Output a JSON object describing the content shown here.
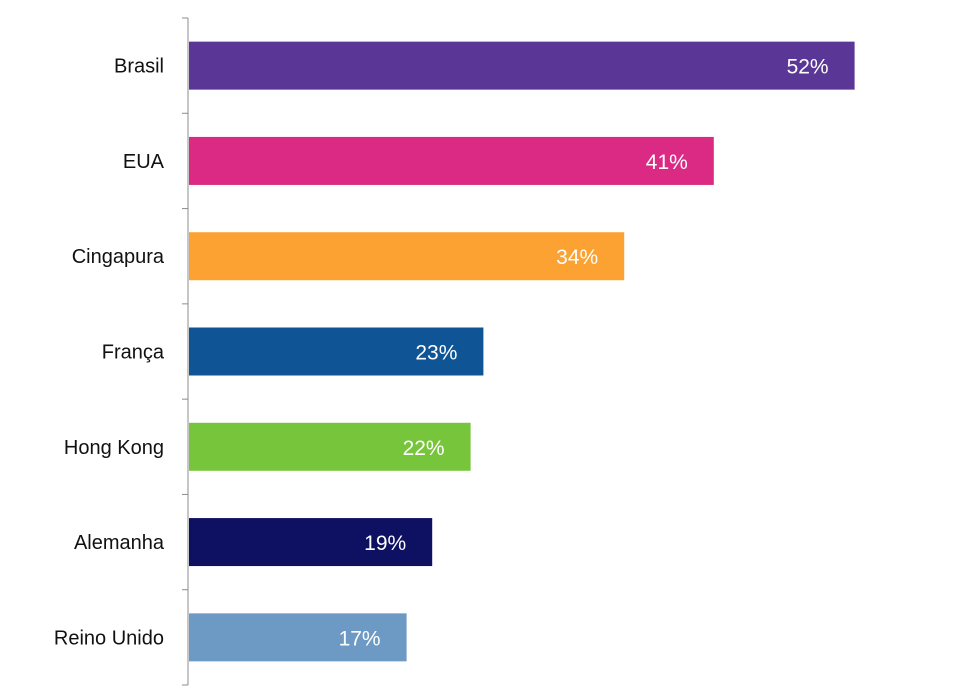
{
  "chart_data": {
    "type": "bar",
    "orientation": "horizontal",
    "categories": [
      "Brasil",
      "EUA",
      "Cingapura",
      "França",
      "Hong Kong",
      "Alemanha",
      "Reino Unido"
    ],
    "values": [
      52,
      41,
      34,
      23,
      22,
      19,
      17
    ],
    "value_labels": [
      "52%",
      "41%",
      "34%",
      "23%",
      "22%",
      "19%",
      "17%"
    ],
    "bar_colors": [
      "#5a3796",
      "#da2a84",
      "#fba232",
      "#0f5595",
      "#76c53a",
      "#0e1162",
      "#6d9ac4"
    ],
    "title": "",
    "xlabel": "",
    "ylabel": "",
    "xlim": [
      0,
      60
    ],
    "grid": false,
    "legend": "none"
  }
}
